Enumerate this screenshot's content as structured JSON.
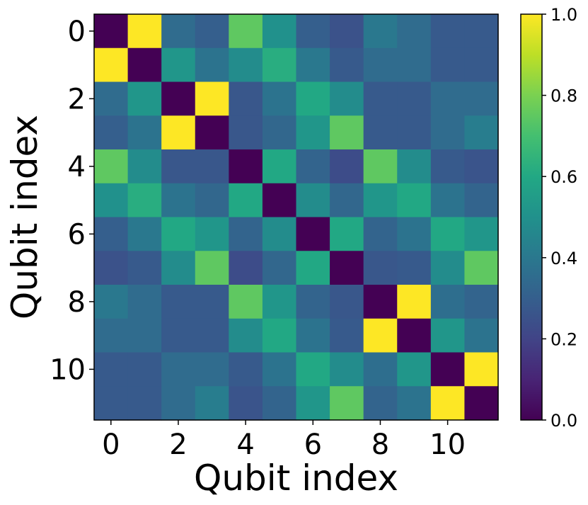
{
  "chart_data": {
    "type": "heatmap",
    "title": "",
    "xlabel": "Qubit index",
    "ylabel": "Qubit index",
    "x_ticks": [
      "0",
      "2",
      "4",
      "6",
      "8",
      "10"
    ],
    "y_ticks": [
      "0",
      "2",
      "4",
      "6",
      "8",
      "10"
    ],
    "x_tick_positions": [
      0,
      2,
      4,
      6,
      8,
      10
    ],
    "y_tick_positions": [
      0,
      2,
      4,
      6,
      8,
      10
    ],
    "rows": 12,
    "cols": 12,
    "colormap": "viridis",
    "vmin": 0.0,
    "vmax": 1.0,
    "colorbar_ticks": [
      "0.0",
      "0.2",
      "0.4",
      "0.6",
      "0.8",
      "1.0"
    ],
    "colorbar_tick_values": [
      0.0,
      0.2,
      0.4,
      0.6,
      0.8,
      1.0
    ],
    "matrix": [
      [
        0.0,
        1.0,
        0.35,
        0.3,
        0.75,
        0.5,
        0.3,
        0.25,
        0.4,
        0.35,
        0.28,
        0.28
      ],
      [
        1.0,
        0.0,
        0.52,
        0.38,
        0.48,
        0.62,
        0.4,
        0.28,
        0.35,
        0.35,
        0.28,
        0.28
      ],
      [
        0.35,
        0.52,
        0.0,
        1.0,
        0.27,
        0.38,
        0.6,
        0.48,
        0.28,
        0.28,
        0.35,
        0.35
      ],
      [
        0.3,
        0.38,
        1.0,
        0.0,
        0.27,
        0.33,
        0.52,
        0.75,
        0.28,
        0.28,
        0.35,
        0.42
      ],
      [
        0.75,
        0.48,
        0.27,
        0.27,
        0.0,
        0.6,
        0.32,
        0.23,
        0.75,
        0.48,
        0.28,
        0.26
      ],
      [
        0.5,
        0.62,
        0.38,
        0.33,
        0.6,
        0.0,
        0.48,
        0.33,
        0.52,
        0.6,
        0.38,
        0.32
      ],
      [
        0.3,
        0.4,
        0.6,
        0.52,
        0.32,
        0.48,
        0.0,
        0.6,
        0.32,
        0.38,
        0.6,
        0.52
      ],
      [
        0.25,
        0.28,
        0.48,
        0.75,
        0.23,
        0.33,
        0.6,
        0.0,
        0.27,
        0.28,
        0.48,
        0.75
      ],
      [
        0.4,
        0.35,
        0.28,
        0.28,
        0.75,
        0.52,
        0.32,
        0.27,
        0.0,
        1.0,
        0.36,
        0.32
      ],
      [
        0.35,
        0.35,
        0.28,
        0.28,
        0.48,
        0.6,
        0.38,
        0.28,
        1.0,
        0.0,
        0.52,
        0.38
      ],
      [
        0.28,
        0.28,
        0.35,
        0.35,
        0.28,
        0.38,
        0.6,
        0.48,
        0.36,
        0.52,
        0.0,
        1.0
      ],
      [
        0.28,
        0.28,
        0.35,
        0.42,
        0.26,
        0.32,
        0.52,
        0.75,
        0.32,
        0.38,
        1.0,
        0.0
      ]
    ]
  }
}
